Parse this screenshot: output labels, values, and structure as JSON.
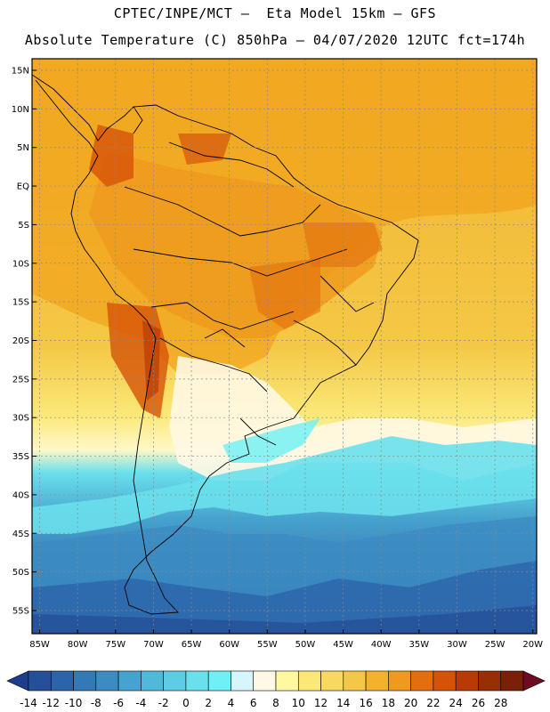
{
  "header": {
    "line1": "CPTEC/INPE/MCT –  Eta Model 15km – GFS",
    "line2": "Absolute Temperature (C) 850hPa – 04/07/2020 12UTC fct=174h"
  },
  "map": {
    "lat_labels": [
      "15N",
      "10N",
      "5N",
      "EQ",
      "5S",
      "10S",
      "15S",
      "20S",
      "25S",
      "30S",
      "35S",
      "40S",
      "45S",
      "50S",
      "55S"
    ],
    "lat_values": [
      15,
      10,
      5,
      0,
      -5,
      -10,
      -15,
      -20,
      -25,
      -30,
      -35,
      -40,
      -45,
      -50,
      -55
    ],
    "lon_labels": [
      "85W",
      "80W",
      "75W",
      "70W",
      "65W",
      "60W",
      "55W",
      "50W",
      "45W",
      "40W",
      "35W",
      "30W",
      "25W",
      "20W"
    ],
    "lon_values": [
      -85,
      -80,
      -75,
      -70,
      -65,
      -60,
      -55,
      -50,
      -45,
      -40,
      -35,
      -30,
      -25,
      -20
    ],
    "lat_range": [
      -58,
      16.5
    ],
    "lon_range": [
      -86,
      -19.5
    ]
  },
  "colorbar": {
    "labels": [
      "-14",
      "-12",
      "-10",
      "-8",
      "-6",
      "-4",
      "-2",
      "0",
      "2",
      "4",
      "6",
      "8",
      "10",
      "12",
      "14",
      "16",
      "18",
      "20",
      "22",
      "24",
      "26",
      "28"
    ],
    "colors": [
      "#1e3c8c",
      "#24509a",
      "#2c64aa",
      "#3478b6",
      "#3c8cc2",
      "#46a2ce",
      "#52b8da",
      "#5ecce4",
      "#6ae0ec",
      "#6ef0f6",
      "#d4f6fc",
      "#fff8e4",
      "#fff8a0",
      "#fbe878",
      "#f8d860",
      "#f4c846",
      "#f2b22c",
      "#ee9a1e",
      "#e26e0e",
      "#d65208",
      "#b83a06",
      "#943004",
      "#7a2008",
      "#6e0a22"
    ]
  }
}
